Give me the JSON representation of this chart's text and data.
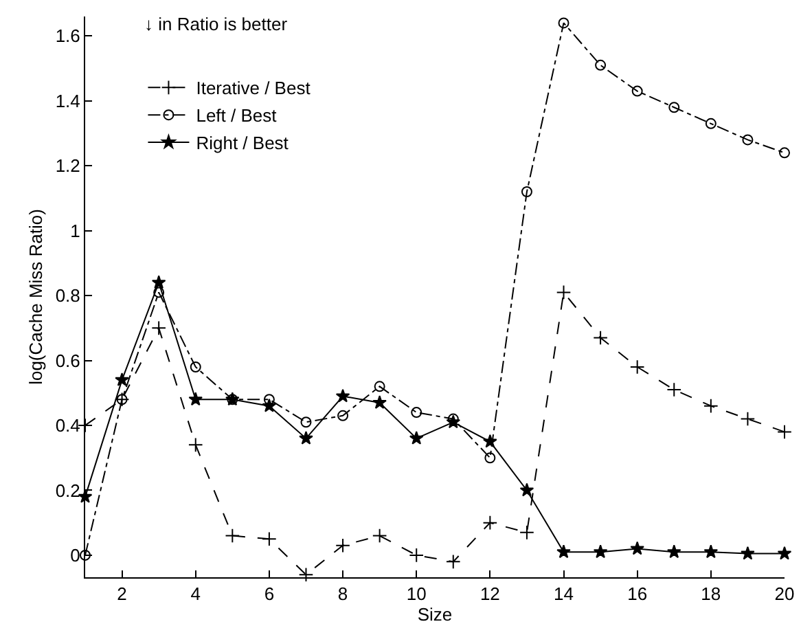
{
  "chart_data": {
    "type": "line",
    "xlabel": "Size",
    "ylabel": "log(Cache Miss Ratio)",
    "annotations": [
      "↓ in Ratio is better"
    ],
    "x": [
      1,
      2,
      3,
      4,
      5,
      6,
      7,
      8,
      9,
      10,
      11,
      12,
      13,
      14,
      15,
      16,
      17,
      18,
      19,
      20
    ],
    "series": [
      {
        "name": "Iterative / Best",
        "color": "#000000",
        "line_style": "dashed",
        "marker": "cross",
        "values": [
          0.4,
          0.48,
          0.7,
          0.34,
          0.06,
          0.05,
          -0.06,
          0.03,
          0.06,
          0.0,
          -0.02,
          0.1,
          0.07,
          0.81,
          0.67,
          0.58,
          0.51,
          0.46,
          0.42,
          0.38
        ]
      },
      {
        "name": "Left / Best",
        "color": "#000000",
        "line_style": "dashdot",
        "marker": "circle",
        "values": [
          0.0,
          0.48,
          0.81,
          0.58,
          0.48,
          0.48,
          0.41,
          0.43,
          0.52,
          0.44,
          0.42,
          0.3,
          1.12,
          1.64,
          1.51,
          1.43,
          1.38,
          1.33,
          1.28,
          1.24
        ]
      },
      {
        "name": "Right / Best",
        "color": "#000000",
        "line_style": "solid",
        "marker": "star",
        "values": [
          0.18,
          0.54,
          0.84,
          0.48,
          0.48,
          0.46,
          0.36,
          0.49,
          0.47,
          0.36,
          0.41,
          0.35,
          0.2,
          0.01,
          0.01,
          0.02,
          0.01,
          0.01,
          0.005,
          0.005
        ]
      }
    ],
    "xlim": [
      1,
      20
    ],
    "xticks": [
      2,
      4,
      6,
      8,
      10,
      12,
      14,
      16,
      18,
      20
    ],
    "ylim": [
      -0.068,
      1.66
    ],
    "yticks": [
      0,
      0.2,
      0.4,
      0.6,
      0.8,
      1,
      1.2,
      1.4,
      1.6
    ],
    "grid": false,
    "legend": "top left"
  }
}
